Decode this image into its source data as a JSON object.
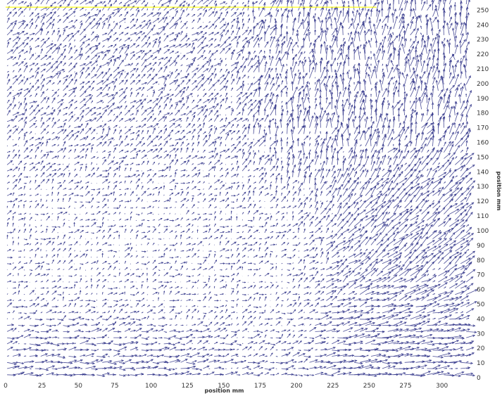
{
  "chart_data": {
    "type": "vector-field",
    "xlabel": "position mm",
    "ylabel": "position mm",
    "xlim": [
      0,
      320
    ],
    "ylim": [
      0,
      254
    ],
    "x_ticks": [
      0,
      25,
      50,
      75,
      100,
      125,
      150,
      175,
      200,
      225,
      250,
      275,
      300
    ],
    "y_ticks": [
      0,
      10,
      20,
      30,
      40,
      50,
      60,
      70,
      80,
      90,
      100,
      110,
      120,
      130,
      140,
      150,
      160,
      170,
      180,
      190,
      200,
      210,
      220,
      230,
      240,
      250
    ],
    "y_axis_side": "right",
    "grid_spacing_mm": {
      "x": 3.85,
      "y": 4.2
    },
    "vector_color": "#2b2f86",
    "vector_alpha": 0.85,
    "vector_scale_mm": 1.15,
    "top_edge_line": {
      "x_range": [
        0,
        255
      ],
      "y": 252,
      "color": "#ffff00"
    },
    "flow_regions": [
      {
        "description_id": "upper-right-jet",
        "x_range": [
          180,
          320
        ],
        "y_range": [
          150,
          254
        ],
        "mean_vector": [
          0.6,
          5.5
        ]
      },
      {
        "description_id": "right-edge-diagonal",
        "x_range": [
          250,
          320
        ],
        "y_range": [
          50,
          160
        ],
        "mean_vector": [
          4.5,
          4.0
        ]
      },
      {
        "description_id": "bottom-right-horizontal",
        "x_range": [
          250,
          320
        ],
        "y_range": [
          0,
          50
        ],
        "mean_vector": [
          6.0,
          0.5
        ]
      },
      {
        "description_id": "bottom-horizontal",
        "x_range": [
          0,
          130
        ],
        "y_range": [
          0,
          25
        ],
        "mean_vector": [
          5.0,
          0.3
        ]
      },
      {
        "description_id": "left-quiet",
        "x_range": [
          0,
          180
        ],
        "y_range": [
          25,
          150
        ],
        "mean_vector": [
          1.5,
          1.0
        ]
      },
      {
        "description_id": "upper-left",
        "x_range": [
          0,
          180
        ],
        "y_range": [
          150,
          254
        ],
        "mean_vector": [
          2.5,
          2.5
        ]
      }
    ]
  }
}
